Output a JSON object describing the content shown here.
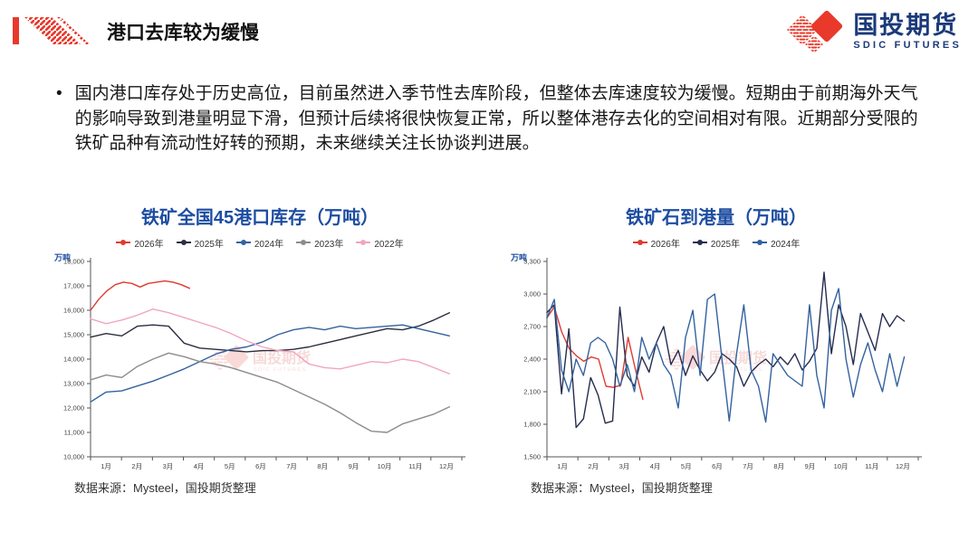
{
  "header": {
    "title": "港口去库较为缓慢"
  },
  "logo": {
    "name": "国投期货",
    "subtitle": "SDIC FUTURES",
    "accent_color": "#e8392b",
    "text_color": "#1b3a7a"
  },
  "bullet": {
    "text": "国内港口库存处于历史高位，目前虽然进入季节性去库阶段，但整体去库速度较为缓慢。短期由于前期海外天气的影响导致到港量明显下滑，但预计后续将很快恢复正常，所以整体港存去化的空间相对有限。近期部分受限的铁矿品种有流动性好转的预期，未来继续关注长协谈判进展。"
  },
  "watermark": {
    "text": "国投期货",
    "subtext": "SDIC FUTURES"
  },
  "chart_data": [
    {
      "type": "line",
      "title": "铁矿全国45港口库存（万吨）",
      "ylabel": "万吨",
      "ylim": [
        10000,
        18000
      ],
      "ytick_step": 1000,
      "grid": false,
      "legend_position": "top",
      "xticks": [
        "1月",
        "2月",
        "3月",
        "4月",
        "5月",
        "6月",
        "7月",
        "8月",
        "9月",
        "10月",
        "11月",
        "12月"
      ],
      "source": "数据来源：Mysteel，国投期货整理",
      "series": [
        {
          "name": "2026年",
          "color": "#e03a2f",
          "x_start": 1,
          "x_end": 4.2,
          "values": [
            16000,
            16450,
            16800,
            17050,
            17150,
            17100,
            16950,
            17100,
            17150,
            17200,
            17150,
            17050,
            16900
          ]
        },
        {
          "name": "2025年",
          "color": "#2b2e3f",
          "x_start": 1,
          "x_end": 12.6,
          "values": [
            14900,
            15050,
            14950,
            15350,
            15400,
            15350,
            14650,
            14450,
            14400,
            14350,
            14300,
            14350,
            14350,
            14400,
            14500,
            14650,
            14800,
            14950,
            15100,
            15250,
            15200,
            15350,
            15600,
            15900
          ]
        },
        {
          "name": "2024年",
          "color": "#33629f",
          "x_start": 1,
          "x_end": 12.6,
          "values": [
            12250,
            12650,
            12700,
            12900,
            13100,
            13350,
            13600,
            13900,
            14200,
            14400,
            14500,
            14700,
            15000,
            15200,
            15300,
            15200,
            15350,
            15250,
            15300,
            15350,
            15400,
            15250,
            15100,
            14950
          ]
        },
        {
          "name": "2023年",
          "color": "#8c8c8c",
          "x_start": 1,
          "x_end": 12.6,
          "values": [
            13150,
            13350,
            13250,
            13700,
            14000,
            14250,
            14100,
            13900,
            13800,
            13650,
            13450,
            13250,
            13050,
            12750,
            12450,
            12150,
            11800,
            11400,
            11050,
            11000,
            11350,
            11550,
            11750,
            12050
          ]
        },
        {
          "name": "2022年",
          "color": "#f0a6c1",
          "x_start": 1,
          "x_end": 12.6,
          "values": [
            15650,
            15450,
            15600,
            15800,
            16050,
            15900,
            15700,
            15500,
            15300,
            15050,
            14750,
            14500,
            14350,
            14300,
            13800,
            13650,
            13600,
            13750,
            13900,
            13850,
            14000,
            13900,
            13650,
            13400
          ]
        }
      ]
    },
    {
      "type": "line",
      "title": "铁矿石到港量（万吨）",
      "ylabel": "万吨",
      "ylim": [
        1500,
        3300
      ],
      "ytick_step": 300,
      "grid": false,
      "legend_position": "top",
      "xticks": [
        "1月",
        "2月",
        "3月",
        "4月",
        "5月",
        "6月",
        "7月",
        "8月",
        "9月",
        "10月",
        "11月",
        "12月"
      ],
      "source": "数据来源：Mysteel，国投期货整理",
      "series": [
        {
          "name": "2026年",
          "color": "#e03a2f",
          "x_start": 1,
          "x_end": 4.1,
          "values": [
            2780,
            2880,
            2650,
            2500,
            2430,
            2380,
            2420,
            2400,
            2150,
            2140,
            2160,
            2600,
            2300,
            2030
          ]
        },
        {
          "name": "2025年",
          "color": "#262c4f",
          "x_start": 1,
          "x_end": 12.55,
          "values": [
            2830,
            2900,
            2080,
            2680,
            1770,
            1850,
            2230,
            2070,
            1810,
            1830,
            2880,
            2250,
            2150,
            2420,
            2280,
            2550,
            2700,
            2350,
            2480,
            2250,
            2430,
            2300,
            2200,
            2280,
            2450,
            2400,
            2330,
            2150,
            2280,
            2350,
            2400,
            2330,
            2420,
            2350,
            2450,
            2300,
            2380,
            2500,
            3200,
            2450,
            2900,
            2700,
            2350,
            2820,
            2650,
            2480,
            2820,
            2700,
            2800,
            2750
          ]
        },
        {
          "name": "2024年",
          "color": "#33629f",
          "x_start": 1,
          "x_end": 12.55,
          "values": [
            2780,
            2950,
            2300,
            2100,
            2400,
            2250,
            2550,
            2600,
            2550,
            2400,
            2150,
            2350,
            2100,
            2600,
            2400,
            2550,
            2350,
            2250,
            1950,
            2600,
            2850,
            2250,
            2950,
            3000,
            2400,
            1830,
            2450,
            2900,
            2300,
            2150,
            1820,
            2450,
            2350,
            2250,
            2200,
            2150,
            2900,
            2250,
            1950,
            2850,
            3050,
            2400,
            2050,
            2350,
            2550,
            2300,
            2100,
            2450,
            2150,
            2420
          ]
        }
      ]
    }
  ]
}
